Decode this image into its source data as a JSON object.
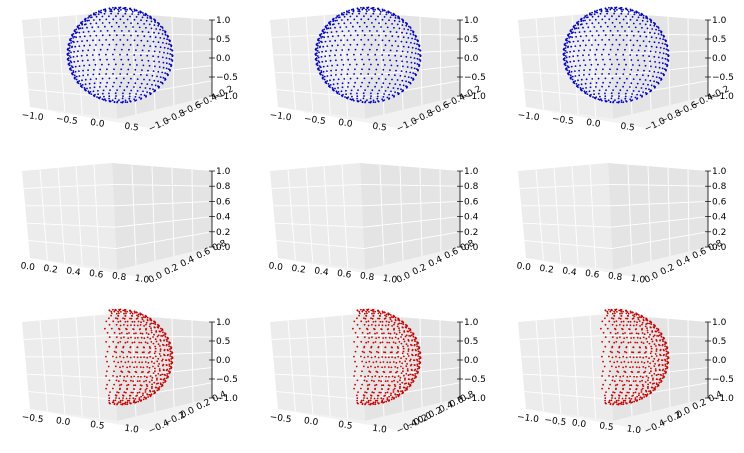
{
  "colors": {
    "blue_series": "#0000cc",
    "red_series": "#cc0000",
    "pane": "#ececec"
  },
  "chart_data": [
    {
      "type": "scatter",
      "projection": "3d",
      "subject": "sphere",
      "color": "#0000cc",
      "xlim": [
        -1.0,
        1.0
      ],
      "ylim": [
        -1.0,
        1.0
      ],
      "zlim": [
        -1.0,
        1.0
      ],
      "x_ticks": [
        "−1.0",
        "−0.5",
        "0.0",
        "0.5"
      ],
      "y_ticks": [
        "−1.0",
        "−0.8",
        "−0.6",
        "−0.4",
        "−0.2"
      ],
      "z_ticks": [
        "1.0",
        "0.5",
        "0.0",
        "−0.5",
        "−1.0"
      ]
    },
    {
      "type": "scatter",
      "projection": "3d",
      "subject": "sphere",
      "color": "#0000cc",
      "xlim": [
        -1.0,
        1.0
      ],
      "ylim": [
        -1.0,
        1.0
      ],
      "zlim": [
        -1.0,
        1.0
      ],
      "x_ticks": [
        "−1.0",
        "−0.5",
        "0.0",
        "0.5"
      ],
      "y_ticks": [
        "−1.0",
        "−0.8",
        "−0.6",
        "−0.4",
        "−0.2"
      ],
      "z_ticks": [
        "1.0",
        "0.5",
        "0.0",
        "−0.5",
        "−1.0"
      ]
    },
    {
      "type": "scatter",
      "projection": "3d",
      "subject": "sphere",
      "color": "#0000cc",
      "xlim": [
        -1.0,
        1.0
      ],
      "ylim": [
        -1.0,
        1.0
      ],
      "zlim": [
        -1.0,
        1.0
      ],
      "x_ticks": [
        "−1.0",
        "−0.5",
        "0.0",
        "0.5"
      ],
      "y_ticks": [
        "−1.0",
        "−0.8",
        "−0.6",
        "−0.4",
        "−0.2"
      ],
      "z_ticks": [
        "1.0",
        "0.5",
        "0.0",
        "−0.5",
        "−1.0"
      ]
    },
    {
      "type": "scatter",
      "projection": "3d",
      "subject": "empty",
      "xlim": [
        0.0,
        1.0
      ],
      "ylim": [
        0.0,
        1.0
      ],
      "zlim": [
        0.0,
        1.0
      ],
      "x_ticks": [
        "0.0",
        "0.2",
        "0.4",
        "0.6",
        "0.8",
        "1.0"
      ],
      "y_ticks": [
        "0.0",
        "0.2",
        "0.4",
        "0.6",
        "0.8"
      ],
      "z_ticks": [
        "1.0",
        "0.8",
        "0.6",
        "0.4",
        "0.2",
        "0.0"
      ]
    },
    {
      "type": "scatter",
      "projection": "3d",
      "subject": "empty",
      "xlim": [
        0.0,
        1.0
      ],
      "ylim": [
        0.0,
        1.0
      ],
      "zlim": [
        0.0,
        1.0
      ],
      "x_ticks": [
        "0.0",
        "0.2",
        "0.4",
        "0.6",
        "0.8",
        "1.0"
      ],
      "y_ticks": [
        "0.0",
        "0.2",
        "0.4",
        "0.6",
        "0.8"
      ],
      "z_ticks": [
        "1.0",
        "0.8",
        "0.6",
        "0.4",
        "0.2",
        "0.0"
      ]
    },
    {
      "type": "scatter",
      "projection": "3d",
      "subject": "empty",
      "xlim": [
        0.0,
        1.0
      ],
      "ylim": [
        0.0,
        1.0
      ],
      "zlim": [
        0.0,
        1.0
      ],
      "x_ticks": [
        "0.0",
        "0.2",
        "0.4",
        "0.6",
        "0.8",
        "1.0"
      ],
      "y_ticks": [
        "0.0",
        "0.2",
        "0.4",
        "0.6",
        "0.8"
      ],
      "z_ticks": [
        "1.0",
        "0.8",
        "0.6",
        "0.4",
        "0.2",
        "0.0"
      ]
    },
    {
      "type": "scatter",
      "projection": "3d",
      "subject": "sphere",
      "color": "#cc0000",
      "xlim": [
        -1.0,
        1.0
      ],
      "ylim": [
        -1.0,
        1.0
      ],
      "zlim": [
        -1.0,
        1.0
      ],
      "x_ticks": [
        "−0.5",
        "0.0",
        "0.5",
        "1.0"
      ],
      "y_ticks": [
        "−0.4",
        "−0.2",
        "0.0",
        "0.2",
        "0.4"
      ],
      "z_ticks": [
        "1.0",
        "0.5",
        "0.0",
        "−0.5",
        "−1.0"
      ]
    },
    {
      "type": "scatter",
      "projection": "3d",
      "subject": "sphere",
      "color": "#cc0000",
      "xlim": [
        -1.0,
        1.0
      ],
      "ylim": [
        -1.0,
        1.0
      ],
      "zlim": [
        -1.0,
        1.0
      ],
      "x_ticks": [
        "−0.5",
        "0.0",
        "0.5",
        "1.0"
      ],
      "y_ticks": [
        "−0.4",
        "−0.2",
        "0.0",
        "0.2",
        "0.4",
        "0.6",
        "0.8"
      ],
      "z_ticks": [
        "1.0",
        "0.5",
        "0.0",
        "−0.5",
        "−1.0"
      ]
    },
    {
      "type": "scatter",
      "projection": "3d",
      "subject": "sphere",
      "color": "#cc0000",
      "xlim": [
        -1.0,
        1.0
      ],
      "ylim": [
        -1.0,
        1.0
      ],
      "zlim": [
        -1.0,
        1.0
      ],
      "x_ticks": [
        "−1.0",
        "−0.5",
        "0.0",
        "0.5",
        "1.0"
      ],
      "y_ticks": [
        "−0.4",
        "−0.2",
        "0.0",
        "0.2",
        "0.4"
      ],
      "z_ticks": [
        "1.0",
        "0.5",
        "0.0",
        "−0.5",
        "−1.0"
      ]
    }
  ]
}
